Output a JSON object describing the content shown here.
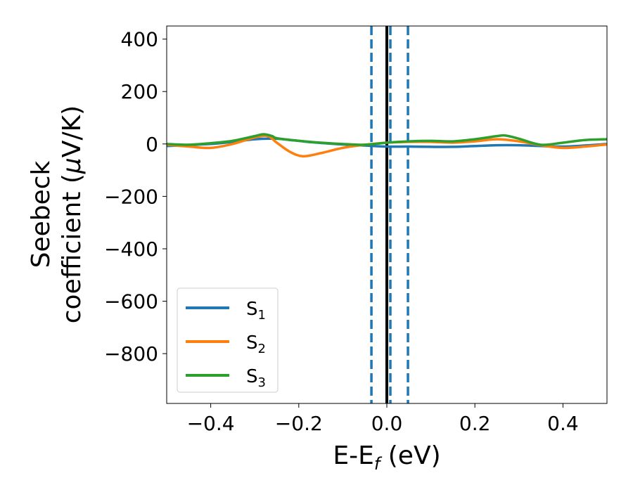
{
  "chart_data": {
    "type": "line",
    "xlabel": "E-E",
    "xlabel_sub": "f",
    "xlabel_unit": " (eV)",
    "ylabel_line1": "Seebeck",
    "ylabel_line2": "coefficient  (",
    "ylabel_mu": "μ",
    "ylabel_unit": "V/K)",
    "xlim": [
      -0.5,
      0.5
    ],
    "ylim": [
      -990,
      450
    ],
    "xticks": [
      -0.4,
      -0.2,
      0.0,
      0.2,
      0.4
    ],
    "xtick_labels": [
      "−0.4",
      "−0.2",
      "0.0",
      "0.2",
      "0.4"
    ],
    "yticks": [
      400,
      200,
      0,
      -200,
      -400,
      -600,
      -800
    ],
    "ytick_labels": [
      "400",
      "200",
      "0",
      "−200",
      "−400",
      "−600",
      "−800"
    ],
    "legend_position": "lower-left",
    "vertical_lines": [
      {
        "x": -0.035,
        "style": "dashed",
        "color": "#1f77b4"
      },
      {
        "x": 0.0,
        "style": "solid",
        "color": "#000000"
      },
      {
        "x": 0.008,
        "style": "dashed",
        "color": "#1f77b4"
      },
      {
        "x": 0.048,
        "style": "dashed",
        "color": "#1f77b4"
      }
    ],
    "series": [
      {
        "name": "S",
        "sub": "1",
        "color": "#1f77b4",
        "x": [
          -0.5,
          -0.45,
          -0.4,
          -0.35,
          -0.3,
          -0.25,
          -0.22,
          -0.2,
          -0.18,
          -0.15,
          -0.1,
          -0.05,
          0.0,
          0.05,
          0.1,
          0.15,
          0.2,
          0.25,
          0.3,
          0.35,
          0.4,
          0.45,
          0.5
        ],
        "values": [
          -8,
          -4,
          0,
          8,
          18,
          20,
          15,
          12,
          8,
          4,
          -2,
          -6,
          -10,
          -10,
          -11,
          -11,
          -8,
          -5,
          -5,
          -8,
          -10,
          -6,
          0
        ]
      },
      {
        "name": "S",
        "sub": "2",
        "color": "#ff7f0e",
        "x": [
          -0.5,
          -0.45,
          -0.4,
          -0.35,
          -0.3,
          -0.27,
          -0.25,
          -0.22,
          -0.19,
          -0.15,
          -0.1,
          -0.05,
          0.0,
          0.05,
          0.1,
          0.15,
          0.2,
          0.25,
          0.3,
          0.35,
          0.4,
          0.45,
          0.5
        ],
        "values": [
          -3,
          -10,
          -15,
          0,
          25,
          30,
          5,
          -30,
          -47,
          -35,
          -15,
          -3,
          5,
          8,
          8,
          5,
          10,
          18,
          10,
          -5,
          -15,
          -10,
          -2
        ]
      },
      {
        "name": "S",
        "sub": "3",
        "color": "#2ca02c",
        "x": [
          -0.5,
          -0.45,
          -0.4,
          -0.35,
          -0.3,
          -0.28,
          -0.26,
          -0.25,
          -0.2,
          -0.15,
          -0.1,
          -0.05,
          0.0,
          0.05,
          0.1,
          0.15,
          0.2,
          0.25,
          0.27,
          0.3,
          0.35,
          0.4,
          0.45,
          0.5
        ],
        "values": [
          0,
          -3,
          3,
          12,
          30,
          37,
          30,
          22,
          12,
          5,
          0,
          -3,
          5,
          10,
          12,
          10,
          18,
          30,
          32,
          20,
          -3,
          5,
          15,
          18
        ]
      }
    ]
  }
}
